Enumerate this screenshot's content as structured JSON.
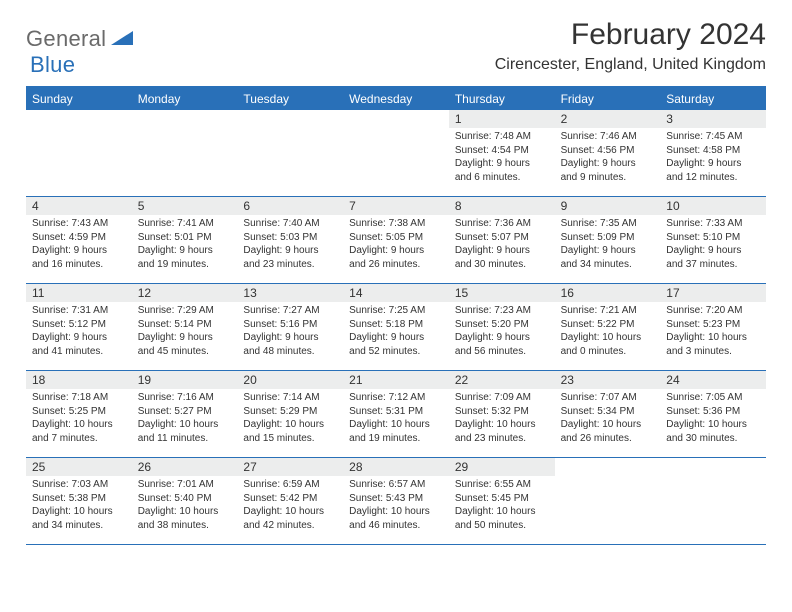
{
  "logo": {
    "part1": "General",
    "part2": "Blue",
    "triangle_color": "#2970b8"
  },
  "title": "February 2024",
  "location": "Cirencester, England, United Kingdom",
  "colors": {
    "header_bg": "#2970b8",
    "header_text": "#ffffff",
    "daynum_bg": "#eceded",
    "rule": "#2970b8",
    "body_text": "#333333",
    "logo_gray": "#6a6a6a"
  },
  "day_names": [
    "Sunday",
    "Monday",
    "Tuesday",
    "Wednesday",
    "Thursday",
    "Friday",
    "Saturday"
  ],
  "weeks": [
    [
      null,
      null,
      null,
      null,
      {
        "n": "1",
        "sr": "7:48 AM",
        "ss": "4:54 PM",
        "dl": "9 hours and 6 minutes."
      },
      {
        "n": "2",
        "sr": "7:46 AM",
        "ss": "4:56 PM",
        "dl": "9 hours and 9 minutes."
      },
      {
        "n": "3",
        "sr": "7:45 AM",
        "ss": "4:58 PM",
        "dl": "9 hours and 12 minutes."
      }
    ],
    [
      {
        "n": "4",
        "sr": "7:43 AM",
        "ss": "4:59 PM",
        "dl": "9 hours and 16 minutes."
      },
      {
        "n": "5",
        "sr": "7:41 AM",
        "ss": "5:01 PM",
        "dl": "9 hours and 19 minutes."
      },
      {
        "n": "6",
        "sr": "7:40 AM",
        "ss": "5:03 PM",
        "dl": "9 hours and 23 minutes."
      },
      {
        "n": "7",
        "sr": "7:38 AM",
        "ss": "5:05 PM",
        "dl": "9 hours and 26 minutes."
      },
      {
        "n": "8",
        "sr": "7:36 AM",
        "ss": "5:07 PM",
        "dl": "9 hours and 30 minutes."
      },
      {
        "n": "9",
        "sr": "7:35 AM",
        "ss": "5:09 PM",
        "dl": "9 hours and 34 minutes."
      },
      {
        "n": "10",
        "sr": "7:33 AM",
        "ss": "5:10 PM",
        "dl": "9 hours and 37 minutes."
      }
    ],
    [
      {
        "n": "11",
        "sr": "7:31 AM",
        "ss": "5:12 PM",
        "dl": "9 hours and 41 minutes."
      },
      {
        "n": "12",
        "sr": "7:29 AM",
        "ss": "5:14 PM",
        "dl": "9 hours and 45 minutes."
      },
      {
        "n": "13",
        "sr": "7:27 AM",
        "ss": "5:16 PM",
        "dl": "9 hours and 48 minutes."
      },
      {
        "n": "14",
        "sr": "7:25 AM",
        "ss": "5:18 PM",
        "dl": "9 hours and 52 minutes."
      },
      {
        "n": "15",
        "sr": "7:23 AM",
        "ss": "5:20 PM",
        "dl": "9 hours and 56 minutes."
      },
      {
        "n": "16",
        "sr": "7:21 AM",
        "ss": "5:22 PM",
        "dl": "10 hours and 0 minutes."
      },
      {
        "n": "17",
        "sr": "7:20 AM",
        "ss": "5:23 PM",
        "dl": "10 hours and 3 minutes."
      }
    ],
    [
      {
        "n": "18",
        "sr": "7:18 AM",
        "ss": "5:25 PM",
        "dl": "10 hours and 7 minutes."
      },
      {
        "n": "19",
        "sr": "7:16 AM",
        "ss": "5:27 PM",
        "dl": "10 hours and 11 minutes."
      },
      {
        "n": "20",
        "sr": "7:14 AM",
        "ss": "5:29 PM",
        "dl": "10 hours and 15 minutes."
      },
      {
        "n": "21",
        "sr": "7:12 AM",
        "ss": "5:31 PM",
        "dl": "10 hours and 19 minutes."
      },
      {
        "n": "22",
        "sr": "7:09 AM",
        "ss": "5:32 PM",
        "dl": "10 hours and 23 minutes."
      },
      {
        "n": "23",
        "sr": "7:07 AM",
        "ss": "5:34 PM",
        "dl": "10 hours and 26 minutes."
      },
      {
        "n": "24",
        "sr": "7:05 AM",
        "ss": "5:36 PM",
        "dl": "10 hours and 30 minutes."
      }
    ],
    [
      {
        "n": "25",
        "sr": "7:03 AM",
        "ss": "5:38 PM",
        "dl": "10 hours and 34 minutes."
      },
      {
        "n": "26",
        "sr": "7:01 AM",
        "ss": "5:40 PM",
        "dl": "10 hours and 38 minutes."
      },
      {
        "n": "27",
        "sr": "6:59 AM",
        "ss": "5:42 PM",
        "dl": "10 hours and 42 minutes."
      },
      {
        "n": "28",
        "sr": "6:57 AM",
        "ss": "5:43 PM",
        "dl": "10 hours and 46 minutes."
      },
      {
        "n": "29",
        "sr": "6:55 AM",
        "ss": "5:45 PM",
        "dl": "10 hours and 50 minutes."
      },
      null,
      null
    ]
  ],
  "labels": {
    "sunrise": "Sunrise:",
    "sunset": "Sunset:",
    "daylight": "Daylight:"
  }
}
